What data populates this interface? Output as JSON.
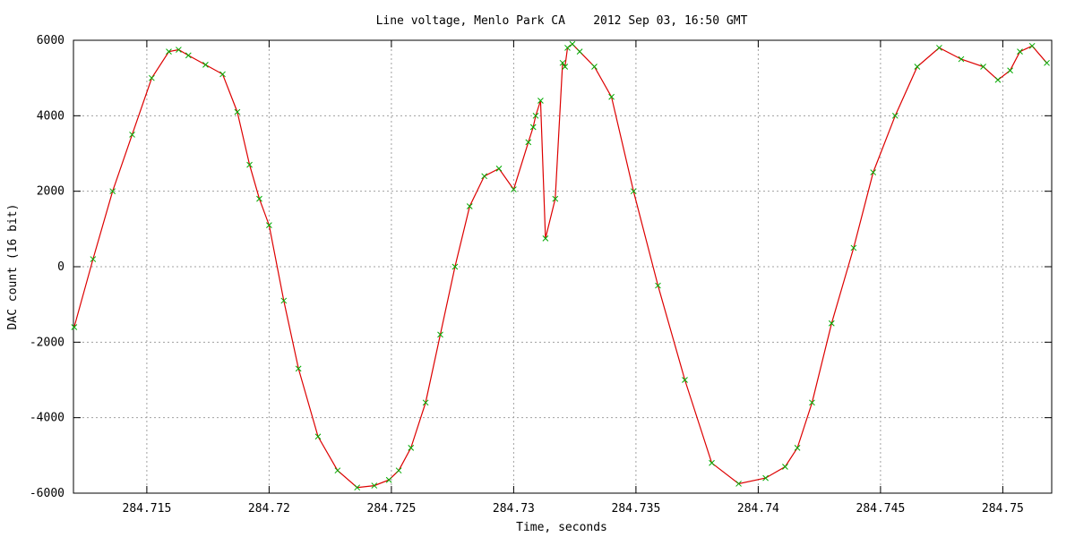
{
  "chart_data": {
    "type": "line",
    "title": "Line voltage, Menlo Park CA    2012 Sep 03, 16:50 GMT",
    "xlabel": "Time, seconds",
    "ylabel": "DAC count (16 bit)",
    "xlim": [
      284.712,
      284.752
    ],
    "ylim": [
      -6000,
      6000
    ],
    "x_ticks": [
      284.715,
      284.72,
      284.725,
      284.73,
      284.735,
      284.74,
      284.745,
      284.75
    ],
    "x_tick_labels": [
      "284.715",
      "284.72",
      "284.725",
      "284.73",
      "284.735",
      "284.74",
      "284.745",
      "284.75"
    ],
    "y_ticks": [
      -6000,
      -4000,
      -2000,
      0,
      2000,
      4000,
      6000
    ],
    "y_tick_labels": [
      "-6000",
      "-4000",
      "-2000",
      "0",
      "2000",
      "4000",
      "6000"
    ],
    "grid": true,
    "legend": "none",
    "line_color": "#dd0000",
    "marker_color": "#00aa00",
    "marker": "x",
    "series": [
      {
        "x": [
          284.71203,
          284.7128,
          284.7136,
          284.7144,
          284.7152,
          284.7159,
          284.7163,
          284.7167,
          284.7174,
          284.7181,
          284.7187,
          284.7192,
          284.7196,
          284.72,
          284.7206,
          284.7212,
          284.722,
          284.7228,
          284.7236,
          284.7243,
          284.7249,
          284.7253,
          284.7258,
          284.7264,
          284.727,
          284.7276,
          284.7282,
          284.7288,
          284.7294,
          284.73,
          284.7306,
          284.7308,
          284.7309,
          284.7311,
          284.7313,
          284.7317,
          284.732,
          284.7321,
          284.7322,
          284.7324,
          284.7327,
          284.7333,
          284.734,
          284.7349,
          284.7359,
          284.737,
          284.7381,
          284.7392,
          284.7403,
          284.7411,
          284.7416,
          284.7422,
          284.743,
          284.7439,
          284.7447,
          284.7456,
          284.7465,
          284.7474,
          284.7483,
          284.7492,
          284.7498,
          284.7503,
          284.7507,
          284.7512,
          284.7518
        ],
        "y": [
          -1600,
          200,
          2000,
          3500,
          5000,
          5700,
          5750,
          5600,
          5350,
          5100,
          4100,
          2700,
          1800,
          1100,
          -900,
          -2700,
          -4500,
          -5400,
          -5850,
          -5800,
          -5650,
          -5400,
          -4800,
          -3600,
          -1800,
          0,
          1600,
          2400,
          2600,
          2050,
          3300,
          3700,
          4000,
          4400,
          750,
          1800,
          5400,
          5300,
          5800,
          5900,
          5700,
          5300,
          4500,
          2000,
          -500,
          -3000,
          -5200,
          -5750,
          -5600,
          -5300,
          -4800,
          -3600,
          -1500,
          500,
          2500,
          4000,
          5300,
          5800,
          5500,
          5300,
          4950,
          5200,
          5700,
          5850,
          5400
        ]
      }
    ]
  }
}
